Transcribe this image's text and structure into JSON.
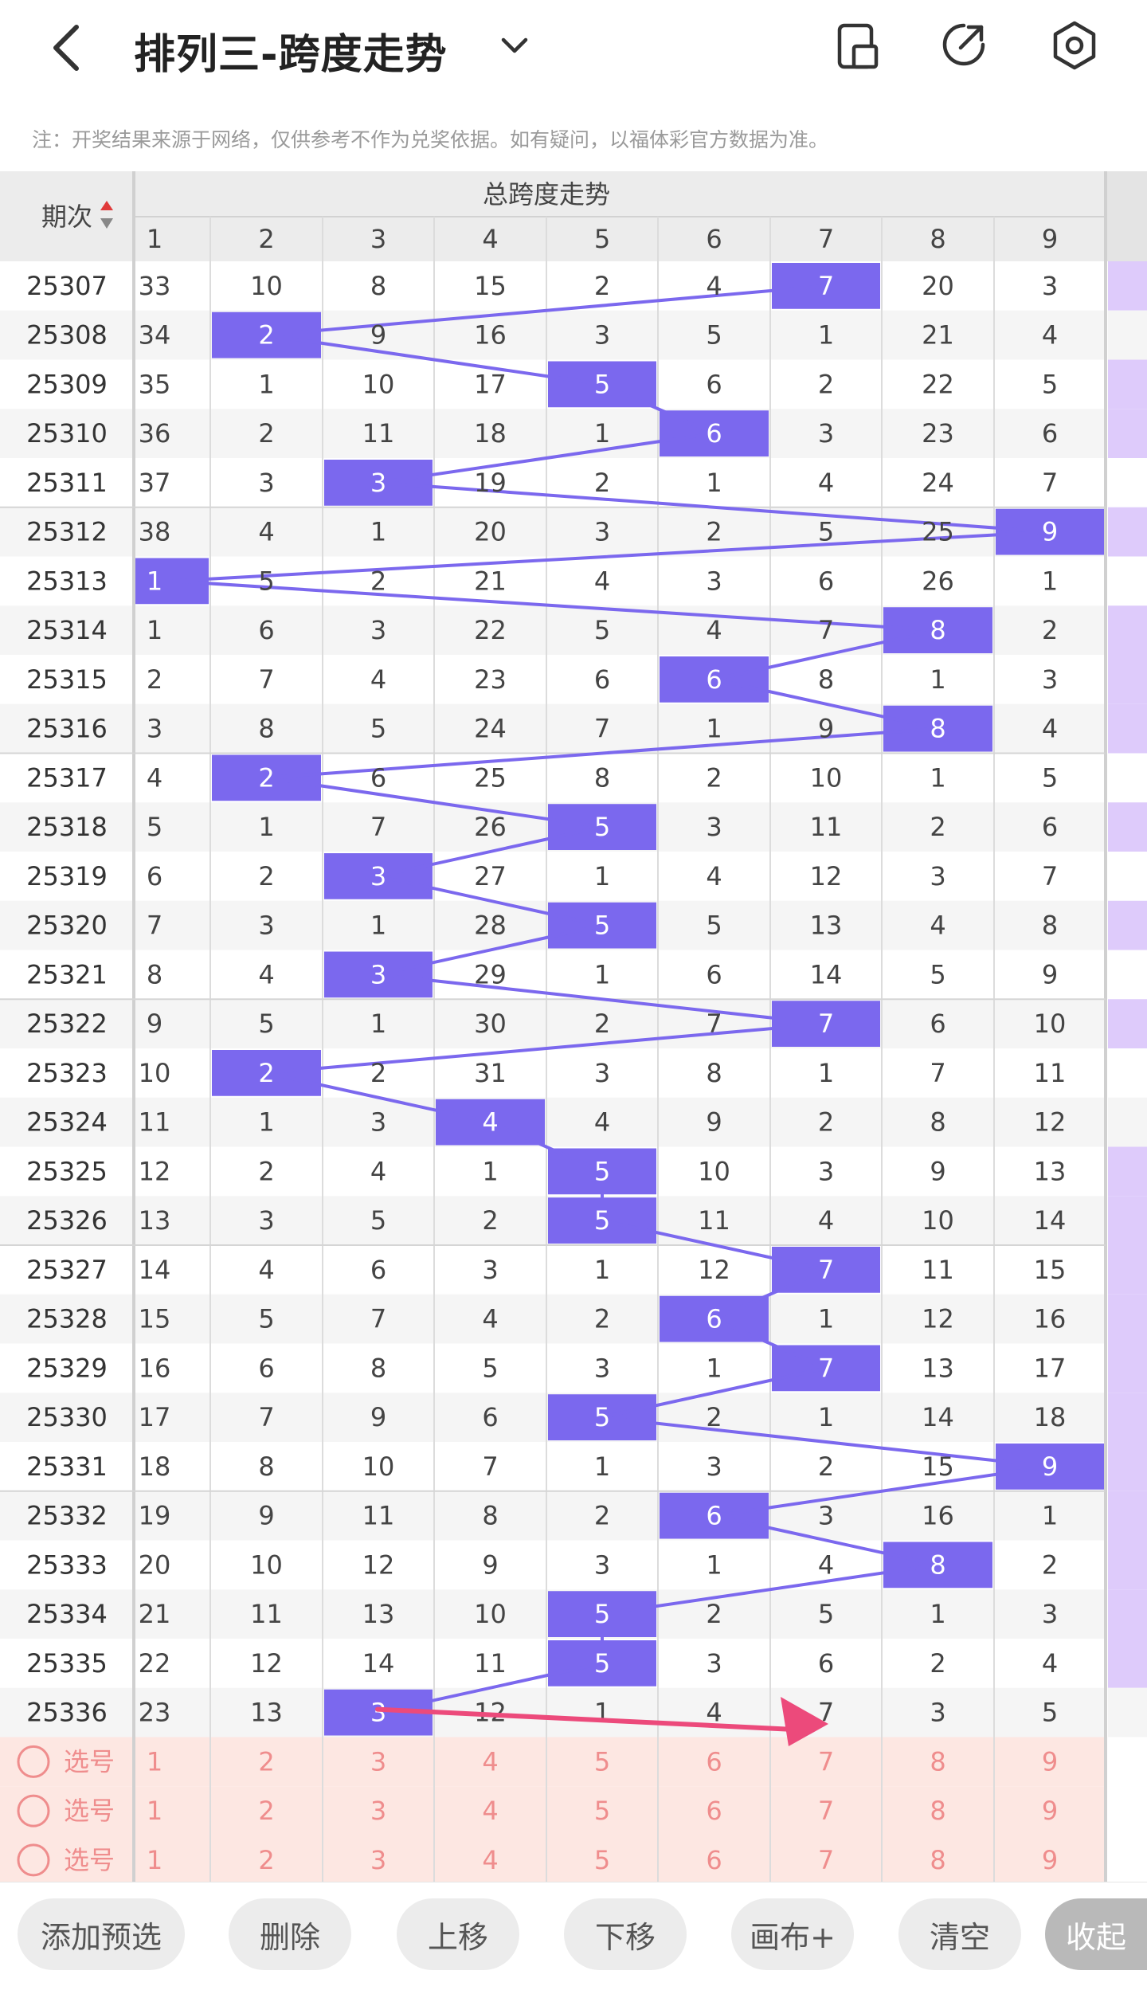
{
  "header": {
    "title": "排列三-跨度走势",
    "back_icon": "chevron-left-icon",
    "dropdown_icon": "chevron-down-icon",
    "actions": [
      "phone-layout-icon",
      "share-arrow-icon",
      "settings-hexagon-icon"
    ]
  },
  "note": "注：开奖结果来源于网络，仅供参考不作为兑奖依据。如有疑问，以福体彩官方数据为准。",
  "table": {
    "period_header": "期次",
    "group_header": "总跨度走势",
    "columns": [
      "1",
      "2",
      "3",
      "4",
      "5",
      "6",
      "7",
      "8",
      "9"
    ],
    "rows": [
      {
        "period": "25307",
        "cells": [
          "33",
          "10",
          "8",
          "15",
          "2",
          "4",
          "7",
          "20",
          "3"
        ],
        "hit": 7
      },
      {
        "period": "25308",
        "cells": [
          "34",
          "2",
          "9",
          "16",
          "3",
          "5",
          "1",
          "21",
          "4"
        ],
        "hit": 2
      },
      {
        "period": "25309",
        "cells": [
          "35",
          "1",
          "10",
          "17",
          "5",
          "6",
          "2",
          "22",
          "5"
        ],
        "hit": 5
      },
      {
        "period": "25310",
        "cells": [
          "36",
          "2",
          "11",
          "18",
          "1",
          "6",
          "3",
          "23",
          "6"
        ],
        "hit": 6
      },
      {
        "period": "25311",
        "cells": [
          "37",
          "3",
          "3",
          "19",
          "2",
          "1",
          "4",
          "24",
          "7"
        ],
        "hit": 3
      },
      {
        "period": "25312",
        "cells": [
          "38",
          "4",
          "1",
          "20",
          "3",
          "2",
          "5",
          "25",
          "9"
        ],
        "hit": 9
      },
      {
        "period": "25313",
        "cells": [
          "1",
          "5",
          "2",
          "21",
          "4",
          "3",
          "6",
          "26",
          "1"
        ],
        "hit": 1
      },
      {
        "period": "25314",
        "cells": [
          "1",
          "6",
          "3",
          "22",
          "5",
          "4",
          "7",
          "8",
          "2"
        ],
        "hit": 8
      },
      {
        "period": "25315",
        "cells": [
          "2",
          "7",
          "4",
          "23",
          "6",
          "6",
          "8",
          "1",
          "3"
        ],
        "hit": 6
      },
      {
        "period": "25316",
        "cells": [
          "3",
          "8",
          "5",
          "24",
          "7",
          "1",
          "9",
          "8",
          "4"
        ],
        "hit": 8
      },
      {
        "period": "25317",
        "cells": [
          "4",
          "2",
          "6",
          "25",
          "8",
          "2",
          "10",
          "1",
          "5"
        ],
        "hit": 2
      },
      {
        "period": "25318",
        "cells": [
          "5",
          "1",
          "7",
          "26",
          "5",
          "3",
          "11",
          "2",
          "6"
        ],
        "hit": 5
      },
      {
        "period": "25319",
        "cells": [
          "6",
          "2",
          "3",
          "27",
          "1",
          "4",
          "12",
          "3",
          "7"
        ],
        "hit": 3
      },
      {
        "period": "25320",
        "cells": [
          "7",
          "3",
          "1",
          "28",
          "5",
          "5",
          "13",
          "4",
          "8"
        ],
        "hit": 5
      },
      {
        "period": "25321",
        "cells": [
          "8",
          "4",
          "3",
          "29",
          "1",
          "6",
          "14",
          "5",
          "9"
        ],
        "hit": 3
      },
      {
        "period": "25322",
        "cells": [
          "9",
          "5",
          "1",
          "30",
          "2",
          "7",
          "7",
          "6",
          "10"
        ],
        "hit": 7
      },
      {
        "period": "25323",
        "cells": [
          "10",
          "2",
          "2",
          "31",
          "3",
          "8",
          "1",
          "7",
          "11"
        ],
        "hit": 2
      },
      {
        "period": "25324",
        "cells": [
          "11",
          "1",
          "3",
          "4",
          "4",
          "9",
          "2",
          "8",
          "12"
        ],
        "hit": 4
      },
      {
        "period": "25325",
        "cells": [
          "12",
          "2",
          "4",
          "1",
          "5",
          "10",
          "3",
          "9",
          "13"
        ],
        "hit": 5
      },
      {
        "period": "25326",
        "cells": [
          "13",
          "3",
          "5",
          "2",
          "5",
          "11",
          "4",
          "10",
          "14"
        ],
        "hit": 5
      },
      {
        "period": "25327",
        "cells": [
          "14",
          "4",
          "6",
          "3",
          "1",
          "12",
          "7",
          "11",
          "15"
        ],
        "hit": 7
      },
      {
        "period": "25328",
        "cells": [
          "15",
          "5",
          "7",
          "4",
          "2",
          "6",
          "1",
          "12",
          "16"
        ],
        "hit": 6
      },
      {
        "period": "25329",
        "cells": [
          "16",
          "6",
          "8",
          "5",
          "3",
          "1",
          "7",
          "13",
          "17"
        ],
        "hit": 7
      },
      {
        "period": "25330",
        "cells": [
          "17",
          "7",
          "9",
          "6",
          "5",
          "2",
          "1",
          "14",
          "18"
        ],
        "hit": 5
      },
      {
        "period": "25331",
        "cells": [
          "18",
          "8",
          "10",
          "7",
          "1",
          "3",
          "2",
          "15",
          "9"
        ],
        "hit": 9
      },
      {
        "period": "25332",
        "cells": [
          "19",
          "9",
          "11",
          "8",
          "2",
          "6",
          "3",
          "16",
          "1"
        ],
        "hit": 6
      },
      {
        "period": "25333",
        "cells": [
          "20",
          "10",
          "12",
          "9",
          "3",
          "1",
          "4",
          "8",
          "2"
        ],
        "hit": 8
      },
      {
        "period": "25334",
        "cells": [
          "21",
          "11",
          "13",
          "10",
          "5",
          "2",
          "5",
          "1",
          "3"
        ],
        "hit": 5
      },
      {
        "period": "25335",
        "cells": [
          "22",
          "12",
          "14",
          "11",
          "5",
          "3",
          "6",
          "2",
          "4"
        ],
        "hit": 5
      },
      {
        "period": "25336",
        "cells": [
          "23",
          "13",
          "3",
          "12",
          "1",
          "4",
          "7",
          "3",
          "5"
        ],
        "hit": 3
      }
    ],
    "side_marks": [
      true,
      false,
      true,
      true,
      false,
      true,
      false,
      true,
      true,
      true,
      false,
      true,
      false,
      true,
      false,
      true,
      false,
      false,
      true,
      true,
      true,
      true,
      true,
      true,
      true,
      true,
      true,
      true,
      true,
      false
    ],
    "select_rows": [
      {
        "label": "选号",
        "cells": [
          "1",
          "2",
          "3",
          "4",
          "5",
          "6",
          "7",
          "8",
          "9"
        ]
      },
      {
        "label": "选号",
        "cells": [
          "1",
          "2",
          "3",
          "4",
          "5",
          "6",
          "7",
          "8",
          "9"
        ]
      },
      {
        "label": "选号",
        "cells": [
          "1",
          "2",
          "3",
          "4",
          "5",
          "6",
          "7",
          "8",
          "9"
        ]
      }
    ]
  },
  "toolbar": {
    "buttons": [
      "添加预选",
      "删除",
      "上移",
      "下移",
      "画布+",
      "清空",
      "收起"
    ]
  },
  "colors": {
    "hit": "#7b68ee",
    "line": "#7b68ee",
    "arrow": "#ec4a7b",
    "side": "#decbfb",
    "select_bg": "#fde7e2",
    "select_text": "#ef8d8d"
  }
}
